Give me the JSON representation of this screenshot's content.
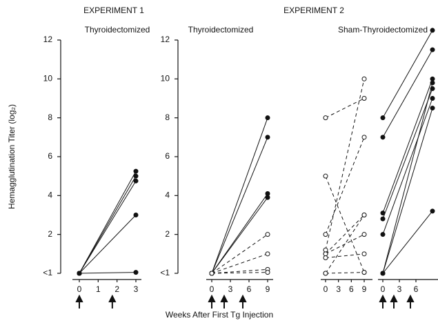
{
  "chart_data": [
    {
      "type": "line",
      "title": "EXPERIMENT 1",
      "subtitle": "Thyroidectomized",
      "y_label": "Hemagglutination Titer (log₂)",
      "x": [
        0,
        3
      ],
      "xlim": [
        0,
        3
      ],
      "xticks": [
        0,
        1,
        2,
        3
      ],
      "ylim": [
        0,
        12
      ],
      "yticks": [
        {
          "value": 0,
          "label": "<1"
        },
        2,
        4,
        6,
        8,
        10,
        12
      ],
      "injections": [
        0,
        1.75
      ],
      "series": [
        {
          "color": "#111111",
          "dashed": false,
          "marker": "filled",
          "values": [
            0,
            5.25
          ]
        },
        {
          "color": "#111111",
          "dashed": false,
          "marker": "filled",
          "values": [
            0,
            5.0
          ]
        },
        {
          "color": "#111111",
          "dashed": false,
          "marker": "filled",
          "values": [
            0,
            4.75
          ]
        },
        {
          "color": "#111111",
          "dashed": false,
          "marker": "filled",
          "values": [
            0,
            3.0
          ]
        },
        {
          "color": "#111111",
          "dashed": false,
          "marker": "filled",
          "values": [
            0,
            0.05
          ]
        }
      ]
    },
    {
      "type": "line",
      "title": "EXPERIMENT 2",
      "subtitle": "Thyroidectomized",
      "x_label": "Weeks After First Tg Injection",
      "x": [
        0,
        9
      ],
      "xlim": [
        0,
        9
      ],
      "xticks": [
        0,
        3,
        6,
        9
      ],
      "ylim": [
        0,
        12
      ],
      "yticks": [
        {
          "value": 0,
          "label": "<1"
        },
        2,
        4,
        6,
        8,
        10,
        12
      ],
      "injections": [
        0,
        2,
        5
      ],
      "series": [
        {
          "color": "#111111",
          "dashed": false,
          "marker": "filled",
          "values": [
            0,
            8
          ]
        },
        {
          "color": "#111111",
          "dashed": false,
          "marker": "filled",
          "values": [
            0,
            7
          ]
        },
        {
          "color": "#111111",
          "dashed": false,
          "marker": "filled",
          "values": [
            0,
            4.1
          ]
        },
        {
          "color": "#111111",
          "dashed": false,
          "marker": "filled",
          "values": [
            0,
            3.9
          ]
        },
        {
          "color": "#111111",
          "dashed": true,
          "marker": "open",
          "values": [
            0,
            2
          ]
        },
        {
          "color": "#111111",
          "dashed": true,
          "marker": "open",
          "values": [
            0,
            1
          ]
        },
        {
          "color": "#111111",
          "dashed": true,
          "marker": "open",
          "values": [
            0,
            0.2
          ]
        },
        {
          "color": "#111111",
          "dashed": true,
          "marker": "open",
          "values": [
            0,
            0.05
          ]
        }
      ]
    },
    {
      "type": "line",
      "subtitle": "Sham-Thyroidectomized",
      "x": [
        0,
        9
      ],
      "xlim": [
        0,
        9
      ],
      "xticks": [
        0,
        3,
        6,
        9
      ],
      "ylim": [
        0,
        12
      ],
      "series": [
        {
          "color": "#111111",
          "dashed": true,
          "marker": "open",
          "values": [
            8,
            9
          ]
        },
        {
          "color": "#111111",
          "dashed": true,
          "marker": "open",
          "values": [
            5,
            0.05
          ]
        },
        {
          "color": "#111111",
          "dashed": true,
          "marker": "open",
          "values": [
            2,
            7
          ]
        },
        {
          "color": "#111111",
          "dashed": true,
          "marker": "open",
          "values": [
            1.2,
            10
          ]
        },
        {
          "color": "#111111",
          "dashed": true,
          "marker": "open",
          "values": [
            1,
            2
          ]
        },
        {
          "color": "#111111",
          "dashed": true,
          "marker": "open",
          "values": [
            1,
            3
          ]
        },
        {
          "color": "#111111",
          "dashed": true,
          "marker": "open",
          "values": [
            0.8,
            1
          ]
        },
        {
          "color": "#111111",
          "dashed": true,
          "marker": "open",
          "values": [
            0,
            3
          ]
        },
        {
          "color": "#111111",
          "dashed": true,
          "marker": "open",
          "values": [
            0,
            0.05
          ]
        }
      ]
    },
    {
      "type": "line",
      "x": [
        0,
        9
      ],
      "xlim": [
        0,
        9
      ],
      "xticks": [
        0,
        3,
        6
      ],
      "ylim": [
        0,
        12
      ],
      "injections": [
        0,
        2,
        5
      ],
      "series": [
        {
          "color": "#111111",
          "dashed": false,
          "marker": "filled",
          "values": [
            8,
            12.5
          ]
        },
        {
          "color": "#111111",
          "dashed": false,
          "marker": "filled",
          "values": [
            7,
            11.5
          ]
        },
        {
          "color": "#111111",
          "dashed": false,
          "marker": "filled",
          "values": [
            3.1,
            10
          ]
        },
        {
          "color": "#111111",
          "dashed": false,
          "marker": "filled",
          "values": [
            2.8,
            9.5
          ]
        },
        {
          "color": "#111111",
          "dashed": false,
          "marker": "filled",
          "values": [
            2,
            9
          ]
        },
        {
          "color": "#111111",
          "dashed": false,
          "marker": "filled",
          "values": [
            0,
            8.5
          ]
        },
        {
          "color": "#111111",
          "dashed": false,
          "marker": "filled",
          "values": [
            0,
            9.8
          ]
        },
        {
          "color": "#111111",
          "dashed": false,
          "marker": "filled",
          "values": [
            0,
            3.2
          ]
        }
      ]
    }
  ]
}
